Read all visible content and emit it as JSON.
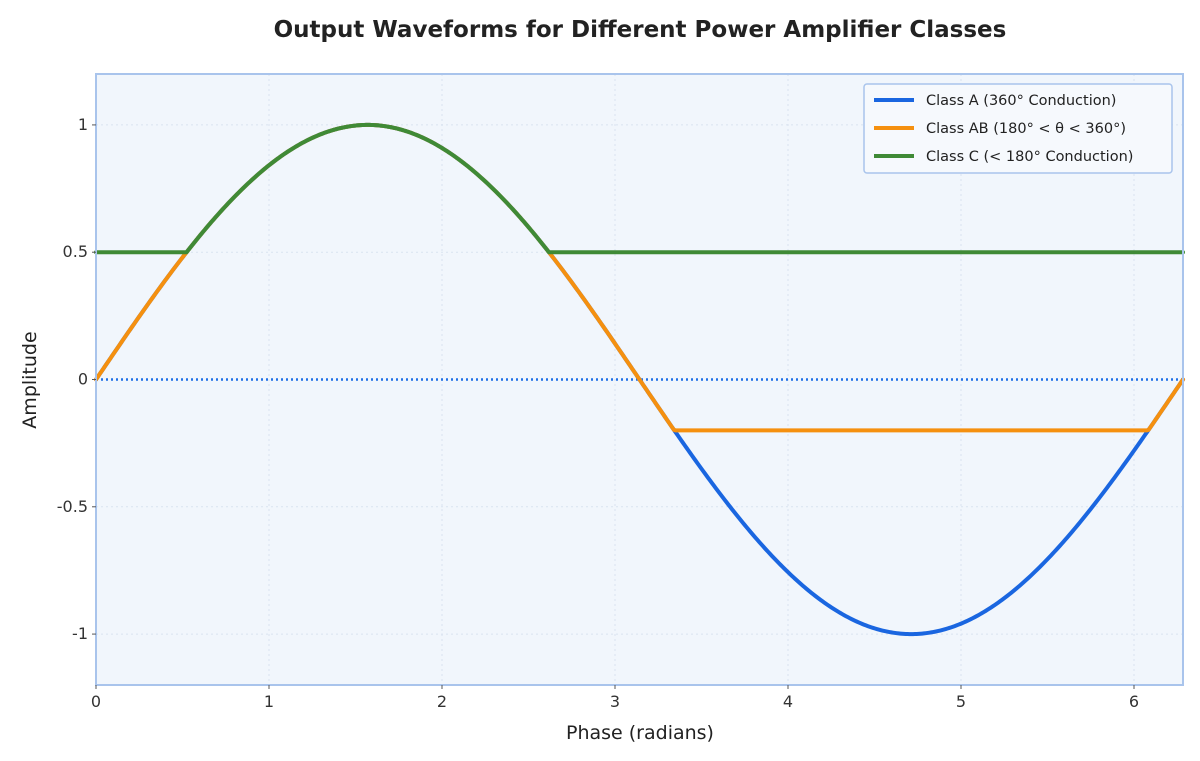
{
  "chart_data": {
    "type": "line",
    "title": "Output Waveforms for Different Power Amplifier Classes",
    "xlabel": "Phase (radians)",
    "ylabel": "Amplitude",
    "xlim": [
      0,
      6.2832
    ],
    "ylim": [
      -1.2,
      1.2
    ],
    "xticks": [
      0,
      1,
      2,
      3,
      4,
      5,
      6
    ],
    "xtick_labels": [
      "0",
      "1",
      "2",
      "3",
      "4",
      "5",
      "6"
    ],
    "yticks": [
      -1,
      -0.5,
      0,
      0.5,
      1
    ],
    "ytick_labels": [
      "-1",
      "-0.5",
      "0",
      "0.5",
      "1"
    ],
    "grid": true,
    "legend_position": "top-right",
    "reference_line": {
      "y": 0,
      "style": "dotted",
      "color": "#1f6fe5"
    },
    "series": [
      {
        "name": "Class A (360° Conduction)",
        "color": "#1a66e0",
        "function": "sin(x)",
        "clip": null
      },
      {
        "name": "Class AB (180° < θ < 360°)",
        "color": "#f5900f",
        "function": "sin(x)",
        "clip": [
          -0.2,
          null
        ]
      },
      {
        "name": "Class C (< 180° Conduction)",
        "color": "#3f8a36",
        "function": "sin(x)",
        "clip": [
          0.5,
          null
        ]
      }
    ],
    "colors": {
      "plot_background": "#f1f6fc",
      "frame": "#a9c4ec",
      "grid": "#d9e3f0"
    }
  }
}
